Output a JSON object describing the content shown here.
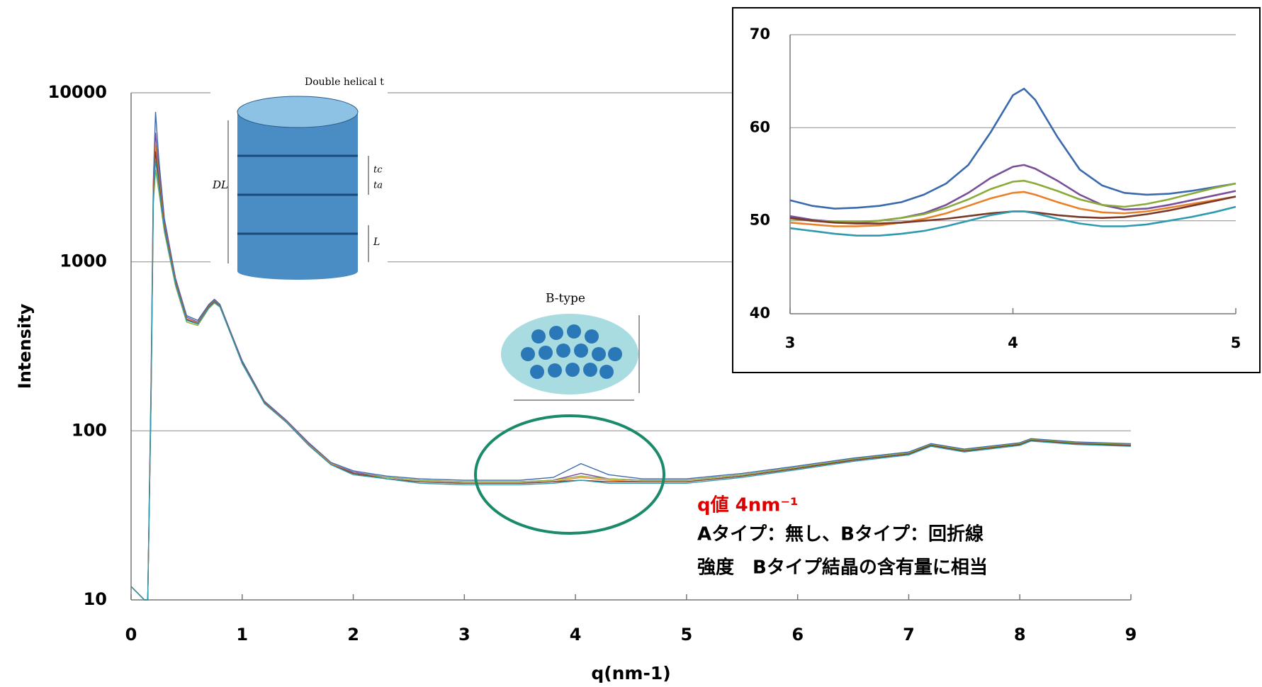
{
  "chart_data": [
    {
      "type": "line",
      "log_y": true,
      "grid": true,
      "x_label": "q(nm-1)",
      "y_label": "Intensity",
      "xlim": [
        0,
        9
      ],
      "ylim": [
        10,
        10000
      ],
      "xticks": [
        0,
        1,
        2,
        3,
        4,
        5,
        6,
        7,
        8,
        9
      ],
      "yticks": [
        10,
        100,
        1000,
        10000
      ],
      "x": [
        0,
        0.12,
        0.15,
        0.18,
        0.2,
        0.22,
        0.25,
        0.3,
        0.4,
        0.5,
        0.6,
        0.7,
        0.75,
        0.8,
        0.9,
        1.0,
        1.2,
        1.4,
        1.6,
        1.8,
        2.0,
        2.3,
        2.6,
        3.0,
        3.5,
        3.8,
        4.05,
        4.3,
        4.6,
        5.0,
        5.5,
        6.0,
        6.5,
        7.0,
        7.2,
        7.5,
        8.0,
        8.1,
        8.5,
        9.0
      ],
      "series": [
        {
          "color": "#3a6aae",
          "values": [
            12,
            10,
            10,
            200,
            3000,
            7700,
            4000,
            1800,
            800,
            480,
            450,
            560,
            600,
            560,
            380,
            260,
            150,
            115,
            85,
            65,
            58,
            54,
            52,
            51,
            51,
            53,
            64,
            55,
            52,
            52,
            56,
            62,
            69,
            75,
            84,
            78,
            85,
            90,
            86,
            84
          ]
        },
        {
          "color": "#7a4f9a",
          "values": [
            12,
            10,
            10,
            180,
            2800,
            5800,
            3500,
            1700,
            780,
            470,
            440,
            550,
            590,
            550,
            375,
            255,
            148,
            114,
            84,
            64,
            57,
            53,
            51,
            50,
            50,
            51,
            56,
            52,
            51,
            51,
            55,
            61,
            68,
            74,
            83,
            77,
            84,
            89,
            85,
            83
          ]
        },
        {
          "color": "#8aaa3a",
          "values": [
            12,
            10,
            10,
            150,
            2200,
            3500,
            2600,
            1500,
            720,
            440,
            420,
            530,
            570,
            540,
            370,
            250,
            146,
            113,
            83,
            64,
            56,
            53,
            51,
            50,
            50,
            51,
            54,
            52,
            51,
            51,
            55,
            61,
            68,
            74,
            83,
            77,
            84,
            89,
            85,
            83
          ]
        },
        {
          "color": "#e8822a",
          "values": [
            12,
            10,
            10,
            170,
            2600,
            5000,
            3200,
            1650,
            760,
            460,
            435,
            545,
            585,
            548,
            372,
            252,
            147,
            113,
            83,
            64,
            56,
            52,
            50,
            49,
            49,
            50,
            53,
            51,
            50,
            50,
            54,
            60,
            67,
            73,
            82,
            76,
            83,
            88,
            84,
            82
          ]
        },
        {
          "color": "#7a3a2a",
          "values": [
            12,
            10,
            10,
            160,
            2400,
            4500,
            3000,
            1600,
            750,
            455,
            430,
            540,
            580,
            545,
            370,
            251,
            146,
            112,
            82,
            63,
            56,
            52,
            50,
            49,
            49,
            50,
            51,
            50,
            50,
            50,
            54,
            60,
            67,
            73,
            82,
            76,
            83,
            88,
            84,
            82
          ]
        },
        {
          "color": "#2e9ab0",
          "values": [
            12,
            10,
            10,
            155,
            2300,
            4000,
            2800,
            1550,
            740,
            450,
            428,
            535,
            575,
            542,
            368,
            250,
            145,
            112,
            82,
            63,
            55,
            52,
            49,
            48,
            48,
            49,
            51,
            49,
            49,
            49,
            53,
            59,
            66,
            72,
            81,
            75,
            82,
            87,
            83,
            81
          ]
        }
      ],
      "annotations": [
        {
          "text": "q値 4nm⁻¹",
          "color": "#e00000"
        },
        {
          "text": "Aタイプ：無し、Bタイプ：回折線",
          "color": "#000000"
        },
        {
          "text": "強度　Bタイプ結晶の含有量に相当",
          "color": "#000000"
        },
        {
          "text": "Double helical t",
          "color": "#000000"
        },
        {
          "text": "B-type",
          "color": "#000000"
        },
        {
          "text": "DL",
          "color": "#000000"
        },
        {
          "text": "tc",
          "color": "#000000"
        },
        {
          "text": "ta",
          "color": "#000000"
        },
        {
          "text": "L",
          "color": "#000000"
        }
      ]
    },
    {
      "type": "line",
      "grid": true,
      "xlim": [
        3,
        5
      ],
      "ylim": [
        40,
        70
      ],
      "xticks": [
        3,
        4,
        5
      ],
      "yticks": [
        40,
        50,
        60,
        70
      ],
      "x": [
        3.0,
        3.1,
        3.2,
        3.3,
        3.4,
        3.5,
        3.6,
        3.7,
        3.8,
        3.9,
        4.0,
        4.05,
        4.1,
        4.2,
        4.3,
        4.4,
        4.5,
        4.6,
        4.7,
        4.8,
        4.9,
        5.0
      ],
      "series": [
        {
          "color": "#3a6aae",
          "values": [
            52.2,
            51.6,
            51.3,
            51.4,
            51.6,
            52.0,
            52.8,
            54.0,
            56.0,
            59.5,
            63.5,
            64.2,
            63.0,
            59.0,
            55.5,
            53.8,
            53.0,
            52.8,
            52.9,
            53.2,
            53.6,
            54.0
          ]
        },
        {
          "color": "#7a4f9a",
          "values": [
            50.5,
            50.1,
            49.9,
            49.8,
            50.0,
            50.3,
            50.8,
            51.7,
            53.0,
            54.6,
            55.8,
            56.0,
            55.6,
            54.3,
            52.8,
            51.7,
            51.2,
            51.3,
            51.7,
            52.2,
            52.7,
            53.2
          ]
        },
        {
          "color": "#8aaa3a",
          "values": [
            50.2,
            50.0,
            49.9,
            49.9,
            50.0,
            50.3,
            50.7,
            51.4,
            52.3,
            53.4,
            54.2,
            54.3,
            54.0,
            53.2,
            52.3,
            51.7,
            51.5,
            51.8,
            52.3,
            52.9,
            53.5,
            54.0
          ]
        },
        {
          "color": "#e8822a",
          "values": [
            49.8,
            49.6,
            49.4,
            49.4,
            49.5,
            49.8,
            50.2,
            50.8,
            51.6,
            52.4,
            53.0,
            53.1,
            52.8,
            52.0,
            51.3,
            50.9,
            50.8,
            51.0,
            51.4,
            51.8,
            52.2,
            52.6
          ]
        },
        {
          "color": "#7a3a2a",
          "values": [
            50.3,
            50.0,
            49.8,
            49.7,
            49.7,
            49.8,
            50.0,
            50.2,
            50.5,
            50.8,
            51.0,
            51.0,
            50.9,
            50.6,
            50.4,
            50.3,
            50.4,
            50.7,
            51.1,
            51.6,
            52.1,
            52.6
          ]
        },
        {
          "color": "#2e9ab0",
          "values": [
            49.2,
            48.9,
            48.6,
            48.4,
            48.4,
            48.6,
            48.9,
            49.4,
            50.0,
            50.6,
            51.0,
            51.0,
            50.8,
            50.2,
            49.7,
            49.4,
            49.4,
            49.6,
            50.0,
            50.4,
            50.9,
            51.5
          ]
        }
      ]
    }
  ]
}
